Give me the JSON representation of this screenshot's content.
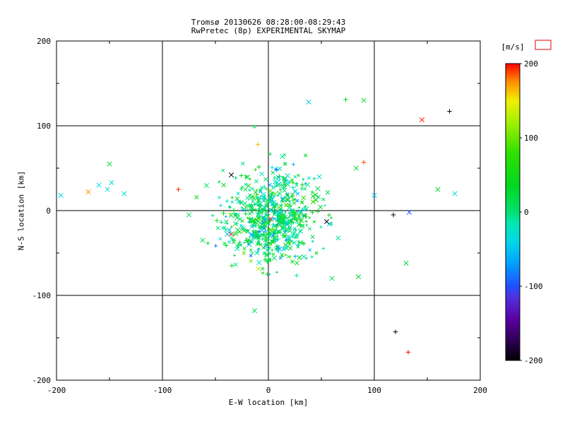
{
  "chart_data": {
    "type": "scatter",
    "title": "Tromsø 20130626 08:28:00-08:29:43",
    "subtitle": "RwPretec (8p) EXPERIMENTAL SKYMAP",
    "xlabel": "E-W location [km]",
    "ylabel": "N-S location [km]",
    "xlim": [
      -200,
      200
    ],
    "ylim": [
      -200,
      200
    ],
    "xticks": [
      -200,
      -100,
      0,
      100,
      200
    ],
    "yticks": [
      -200,
      -100,
      0,
      100,
      200
    ],
    "minor_ticks": [
      -150,
      -50,
      50,
      150
    ],
    "grid": true,
    "gridlines_at": [
      -100,
      0,
      100
    ],
    "legend_position": "right",
    "colorbar": {
      "label": "[m/s]",
      "range": [
        -200,
        200
      ],
      "ticks": [
        200,
        100,
        0,
        -100,
        -200
      ],
      "marker_box_color": "#e00000",
      "stops": [
        {
          "v": -200,
          "c": "#000000"
        },
        {
          "v": -175,
          "c": "#2a0050"
        },
        {
          "v": -145,
          "c": "#5a00a0"
        },
        {
          "v": -115,
          "c": "#5030e0"
        },
        {
          "v": -100,
          "c": "#2050ff"
        },
        {
          "v": -70,
          "c": "#00a0ff"
        },
        {
          "v": -40,
          "c": "#00d8e8"
        },
        {
          "v": -15,
          "c": "#00e8b0"
        },
        {
          "v": 0,
          "c": "#00e070"
        },
        {
          "v": 35,
          "c": "#00d820"
        },
        {
          "v": 80,
          "c": "#30e000"
        },
        {
          "v": 120,
          "c": "#a0f000"
        },
        {
          "v": 150,
          "c": "#f0f000"
        },
        {
          "v": 175,
          "c": "#ff9000"
        },
        {
          "v": 200,
          "c": "#ff0000"
        }
      ]
    },
    "cluster": {
      "comment": "dense central cloud of echoes, velocities near 0 m/s (green/teal)",
      "count": 700,
      "center": [
        2,
        -8
      ],
      "sigma": [
        20,
        26
      ],
      "velocity_mean": 5,
      "velocity_sigma": 40,
      "seed": 20130626,
      "marker_mix": [
        "x",
        "+"
      ]
    },
    "outliers": [
      {
        "x": -196,
        "y": 18,
        "v": -35,
        "m": "x"
      },
      {
        "x": -170,
        "y": 22,
        "v": 175,
        "m": "x"
      },
      {
        "x": -160,
        "y": 30,
        "v": -40,
        "m": "x"
      },
      {
        "x": -152,
        "y": 25,
        "v": -30,
        "m": "x"
      },
      {
        "x": -148,
        "y": 33,
        "v": -35,
        "m": "x"
      },
      {
        "x": -150,
        "y": 55,
        "v": 25,
        "m": "x"
      },
      {
        "x": -136,
        "y": 20,
        "v": -30,
        "m": "x"
      },
      {
        "x": -85,
        "y": 25,
        "v": 195,
        "m": "+"
      },
      {
        "x": -75,
        "y": -5,
        "v": 15,
        "m": "x"
      },
      {
        "x": -62,
        "y": -35,
        "v": 20,
        "m": "x"
      },
      {
        "x": -35,
        "y": 42,
        "v": -195,
        "m": "x"
      },
      {
        "x": -35,
        "y": -28,
        "v": 190,
        "m": "x"
      },
      {
        "x": -13,
        "y": -118,
        "v": 10,
        "m": "x"
      },
      {
        "x": -10,
        "y": 78,
        "v": 165,
        "m": "+"
      },
      {
        "x": 2,
        "y": -10,
        "v": 195,
        "m": "x"
      },
      {
        "x": 38,
        "y": 128,
        "v": -45,
        "m": "x"
      },
      {
        "x": 48,
        "y": 40,
        "v": -45,
        "m": "x"
      },
      {
        "x": 55,
        "y": -13,
        "v": -195,
        "m": "x"
      },
      {
        "x": 60,
        "y": -80,
        "v": 15,
        "m": "x"
      },
      {
        "x": 73,
        "y": 131,
        "v": 40,
        "m": "+"
      },
      {
        "x": 83,
        "y": 50,
        "v": 25,
        "m": "x"
      },
      {
        "x": 85,
        "y": -78,
        "v": 30,
        "m": "x"
      },
      {
        "x": 90,
        "y": 57,
        "v": 190,
        "m": "+"
      },
      {
        "x": 90,
        "y": 130,
        "v": 30,
        "m": "x"
      },
      {
        "x": 100,
        "y": 18,
        "v": -50,
        "m": "x"
      },
      {
        "x": 118,
        "y": -5,
        "v": -195,
        "m": "+"
      },
      {
        "x": 120,
        "y": -143,
        "v": -195,
        "m": "+"
      },
      {
        "x": 130,
        "y": -62,
        "v": 25,
        "m": "x"
      },
      {
        "x": 133,
        "y": -2,
        "v": -95,
        "m": "x"
      },
      {
        "x": 132,
        "y": -167,
        "v": 200,
        "m": "+"
      },
      {
        "x": 145,
        "y": 107,
        "v": 195,
        "m": "x"
      },
      {
        "x": 160,
        "y": 25,
        "v": 35,
        "m": "x"
      },
      {
        "x": 171,
        "y": 117,
        "v": -200,
        "m": "+"
      },
      {
        "x": 176,
        "y": 20,
        "v": -40,
        "m": "x"
      }
    ]
  }
}
